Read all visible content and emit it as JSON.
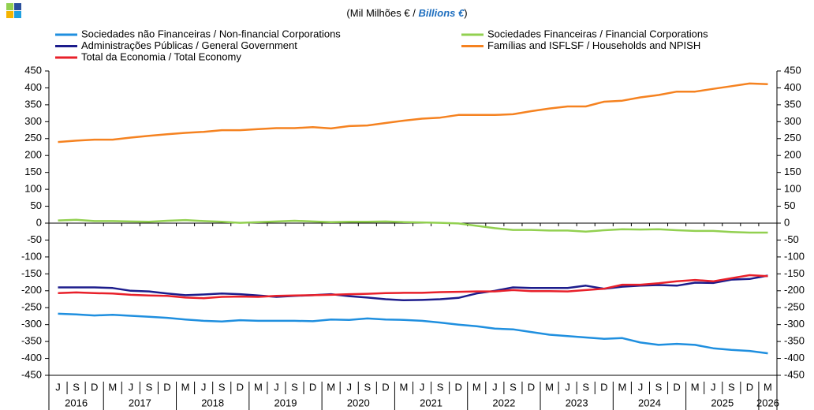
{
  "chart_data": {
    "type": "line",
    "title_parts": [
      "(Mil Milhões € / ",
      "Billions €",
      ")"
    ],
    "categories": [
      "J",
      "S",
      "D",
      "M",
      "J",
      "S",
      "D",
      "M",
      "J",
      "S",
      "D",
      "M",
      "J",
      "S",
      "D",
      "M",
      "J",
      "S",
      "D",
      "M",
      "J",
      "S",
      "D",
      "M",
      "J",
      "S",
      "D",
      "M",
      "J",
      "S",
      "D",
      "M",
      "J",
      "S",
      "D",
      "M",
      "J",
      "S",
      "D",
      "M"
    ],
    "years": [
      "2016",
      "2016",
      "2016",
      "2017",
      "2017",
      "2017",
      "2017",
      "2018",
      "2018",
      "2018",
      "2018",
      "2019",
      "2019",
      "2019",
      "2019",
      "2020",
      "2020",
      "2020",
      "2020",
      "2021",
      "2021",
      "2021",
      "2021",
      "2022",
      "2022",
      "2022",
      "2022",
      "2023",
      "2023",
      "2023",
      "2023",
      "2024",
      "2024",
      "2024",
      "2024",
      "2025",
      "2025",
      "2025",
      "2025",
      "2026"
    ],
    "series": [
      {
        "name": "Sociedades não Financeiras / Non-financial Corporations",
        "color": "#1f8fdf",
        "values": [
          -268,
          -270,
          -273,
          -271,
          -274,
          -277,
          -280,
          -285,
          -289,
          -291,
          -287,
          -289,
          -289,
          -289,
          -290,
          -285,
          -286,
          -282,
          -285,
          -286,
          -289,
          -294,
          -300,
          -305,
          -312,
          -314,
          -322,
          -330,
          -334,
          -338,
          -342,
          -340,
          -353,
          -360,
          -357,
          -360,
          -370,
          -375,
          -378,
          -385
        ]
      },
      {
        "name": "Sociedades Financeiras / Financial Corporations",
        "color": "#92d050",
        "values": [
          8,
          10,
          6,
          6,
          5,
          4,
          7,
          9,
          6,
          4,
          1,
          3,
          5,
          7,
          5,
          3,
          4,
          4,
          5,
          3,
          2,
          1,
          -1,
          -8,
          -15,
          -20,
          -20,
          -22,
          -22,
          -25,
          -21,
          -18,
          -19,
          -18,
          -21,
          -23,
          -23,
          -26,
          -28,
          -28
        ]
      },
      {
        "name": "Administrações Públicas / General Government",
        "color": "#1c1c8c",
        "values": [
          -190,
          -190,
          -190,
          -192,
          -200,
          -202,
          -208,
          -213,
          -211,
          -208,
          -210,
          -214,
          -218,
          -215,
          -213,
          -210,
          -216,
          -220,
          -225,
          -228,
          -227,
          -225,
          -221,
          -208,
          -200,
          -190,
          -192,
          -192,
          -192,
          -185,
          -194,
          -188,
          -185,
          -183,
          -185,
          -176,
          -177,
          -167,
          -165,
          -155
        ]
      },
      {
        "name": "Famílias and ISFLSF / Households and NPISH",
        "color": "#f58220",
        "values": [
          240,
          244,
          247,
          247,
          253,
          258,
          263,
          267,
          270,
          275,
          275,
          278,
          281,
          281,
          284,
          280,
          287,
          289,
          296,
          303,
          309,
          312,
          320,
          320,
          320,
          322,
          331,
          339,
          345,
          345,
          359,
          362,
          372,
          379,
          389,
          389,
          397,
          405,
          413,
          411
        ]
      },
      {
        "name": "Total da Economia / Total Economy",
        "color": "#e8202a",
        "values": [
          -207,
          -205,
          -207,
          -208,
          -212,
          -214,
          -215,
          -220,
          -222,
          -218,
          -217,
          -218,
          -215,
          -214,
          -213,
          -212,
          -210,
          -209,
          -207,
          -206,
          -206,
          -204,
          -203,
          -202,
          -202,
          -198,
          -201,
          -201,
          -202,
          -198,
          -194,
          -182,
          -182,
          -178,
          -172,
          -168,
          -172,
          -163,
          -154,
          -157
        ]
      }
    ],
    "ylim": [
      -450,
      450
    ],
    "yticks": [
      -450,
      -400,
      -350,
      -300,
      -250,
      -200,
      -150,
      -100,
      -50,
      0,
      50,
      100,
      150,
      200,
      250,
      300,
      350,
      400,
      450
    ],
    "y2lim": [
      -450,
      450
    ],
    "y2ticks": [
      -450,
      -400,
      -350,
      -300,
      -250,
      -200,
      -150,
      -100,
      -50,
      0,
      50,
      100,
      150,
      200,
      250,
      300,
      350,
      400,
      450
    ]
  }
}
